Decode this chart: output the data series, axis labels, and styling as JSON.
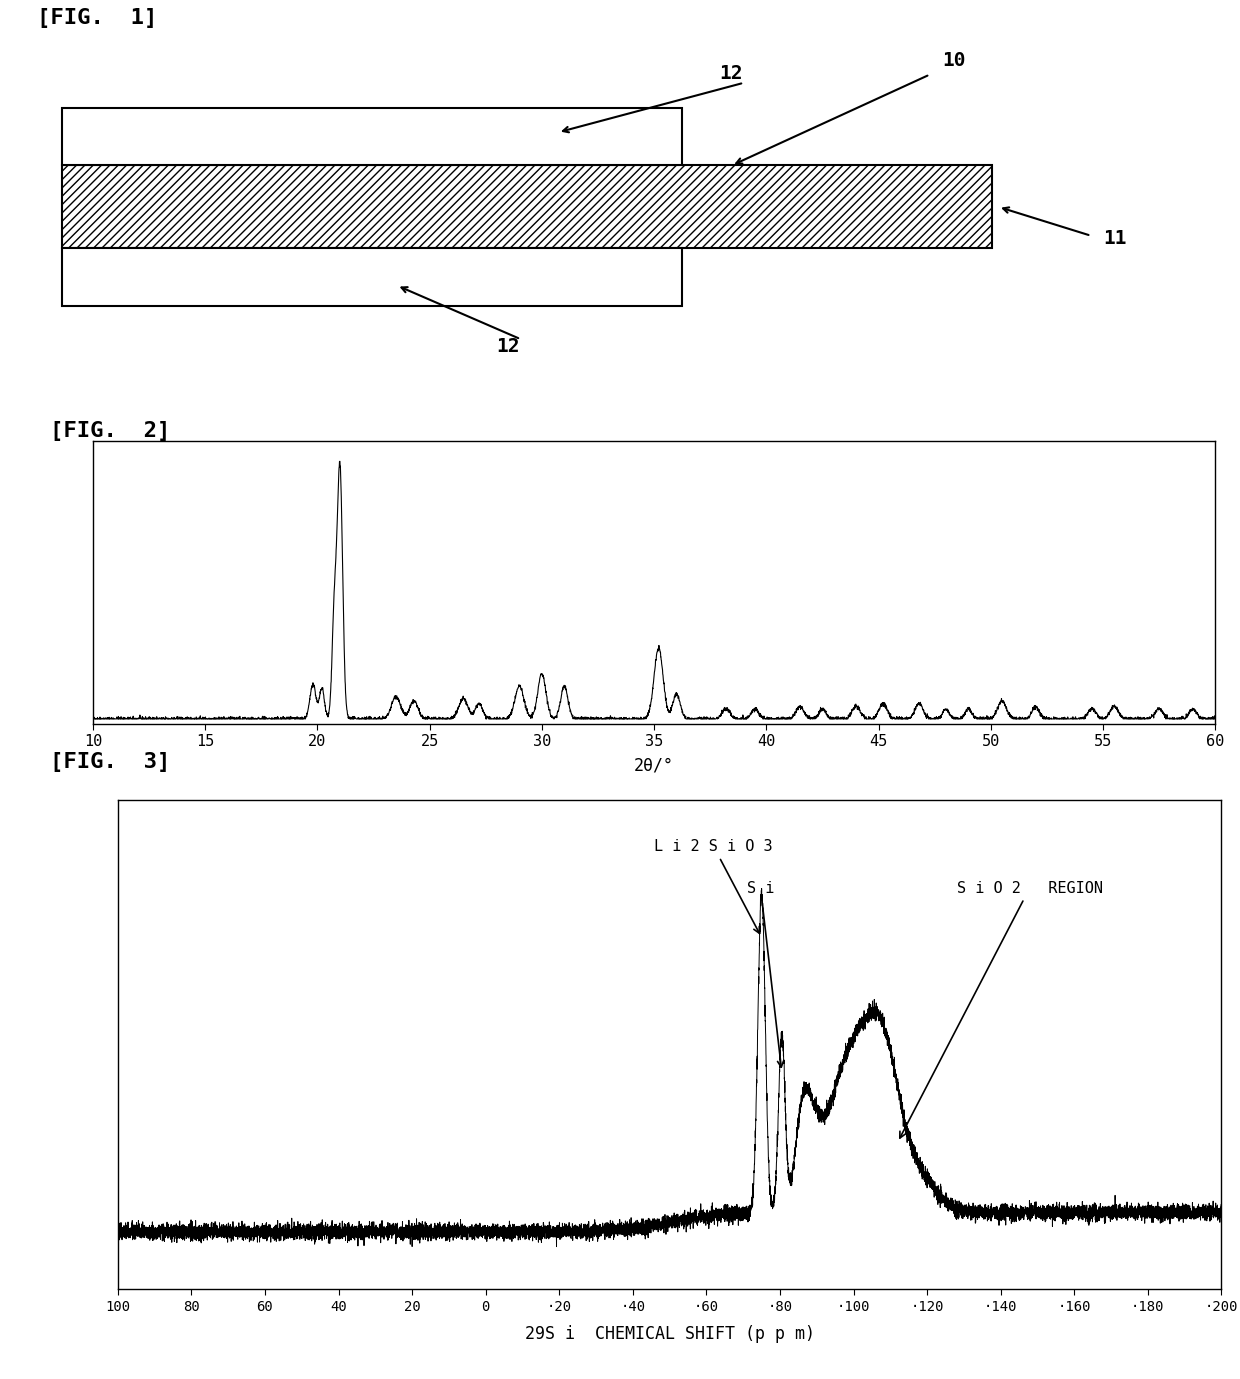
{
  "fig1_label": "[FIG.  1]",
  "fig2_label": "[FIG.  2]",
  "fig3_label": "[FIG.  3]",
  "label_10": "10",
  "label_11": "11",
  "label_12": "12",
  "xrd_xlabel": "2θ/°",
  "xrd_xlim": [
    10,
    60
  ],
  "xrd_xticks": [
    10,
    15,
    20,
    25,
    30,
    35,
    40,
    45,
    50,
    55,
    60
  ],
  "nmr_xlabel": "29S i  CHEMICAL SHIFT (p p m)",
  "nmr_xlim": [
    100,
    -200
  ],
  "nmr_xticks": [
    100,
    80,
    60,
    40,
    20,
    0,
    -20,
    -40,
    -60,
    -80,
    -100,
    -120,
    -140,
    -160,
    -180,
    -200
  ],
  "li2sio3_label": "L i 2 S i O 3",
  "si_label": "S i",
  "sio2_label": "S i O 2   REGION",
  "background": "#ffffff",
  "line_color": "#000000"
}
